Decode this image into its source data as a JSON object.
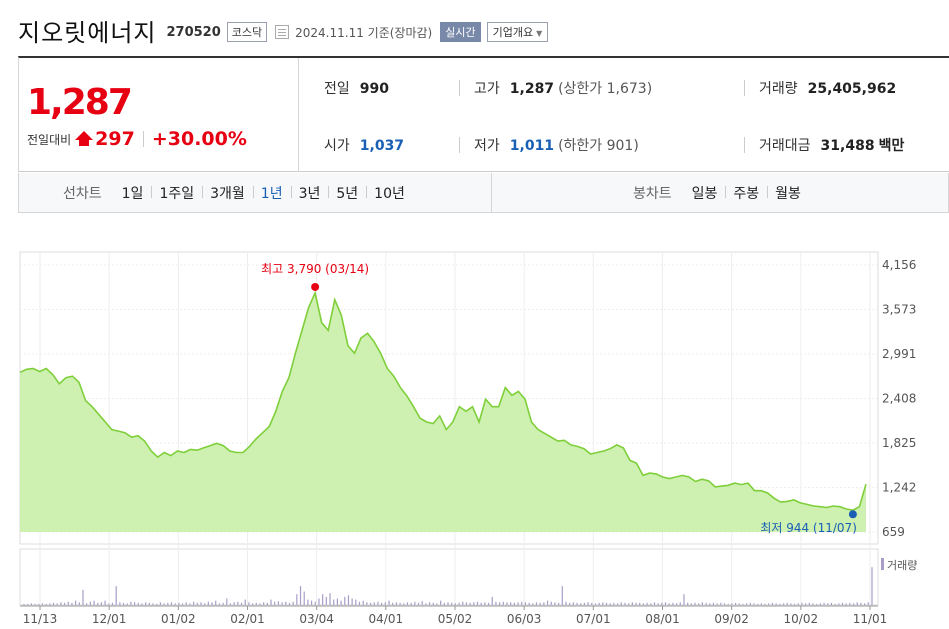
{
  "header": {
    "company_name": "지오릿에너지",
    "stock_code": "270520",
    "market": "코스닥",
    "date_text": "2024.11.11 기준(장마감)",
    "realtime_label": "실시간",
    "overview_label": "기업개요"
  },
  "price": {
    "current": "1,287",
    "change_label": "전일대비",
    "change_value": "297",
    "change_pct": "+30.00%",
    "up_color": "#e60012"
  },
  "stats": {
    "prev_close_label": "전일",
    "prev_close": "990",
    "high_label": "고가",
    "high": "1,287",
    "upper_limit_text": "(상한가 1,673)",
    "volume_label": "거래량",
    "volume": "25,405,962",
    "open_label": "시가",
    "open": "1,037",
    "low_label": "저가",
    "low": "1,011",
    "lower_limit_text": "(하한가 901)",
    "value_label": "거래대금",
    "value": "31,488",
    "value_unit": "백만"
  },
  "periods": {
    "line_label": "선차트",
    "line_options": [
      "1일",
      "1주일",
      "3개월",
      "1년",
      "3년",
      "5년",
      "10년"
    ],
    "active": "1년",
    "candle_label": "봉차트",
    "candle_options": [
      "일봉",
      "주봉",
      "월봉"
    ]
  },
  "chart_data": {
    "type": "area",
    "y_ticks": [
      "4,156",
      "3,573",
      "2,991",
      "2,408",
      "1,825",
      "1,242",
      "659"
    ],
    "ylim": [
      659,
      4156
    ],
    "x_ticks": [
      "11/13",
      "12/01",
      "01/02",
      "02/01",
      "03/04",
      "04/01",
      "05/02",
      "06/03",
      "07/01",
      "08/01",
      "09/02",
      "10/02",
      "11/01"
    ],
    "high_annotation": "최고 3,790 (03/14)",
    "low_annotation": "최저 944 (11/07)",
    "volume_label": "거래량",
    "line_color": "#7ecf3a",
    "fill_color": "#c9f0a8",
    "high_color": "#e60012",
    "low_color": "#1a5fb4",
    "price_series": [
      [
        "11/13",
        2750
      ],
      [
        "11/15",
        2790
      ],
      [
        "11/17",
        2800
      ],
      [
        "11/20",
        2760
      ],
      [
        "11/22",
        2800
      ],
      [
        "11/24",
        2720
      ],
      [
        "11/27",
        2600
      ],
      [
        "11/29",
        2680
      ],
      [
        "12/01",
        2700
      ],
      [
        "12/04",
        2620
      ],
      [
        "12/06",
        2380
      ],
      [
        "12/08",
        2300
      ],
      [
        "12/11",
        2200
      ],
      [
        "12/13",
        2100
      ],
      [
        "12/15",
        2000
      ],
      [
        "12/18",
        1980
      ],
      [
        "12/20",
        1960
      ],
      [
        "12/22",
        1900
      ],
      [
        "12/26",
        1920
      ],
      [
        "12/28",
        1850
      ],
      [
        "01/02",
        1720
      ],
      [
        "01/04",
        1640
      ],
      [
        "01/08",
        1700
      ],
      [
        "01/10",
        1660
      ],
      [
        "01/12",
        1720
      ],
      [
        "01/16",
        1700
      ],
      [
        "01/18",
        1740
      ],
      [
        "01/22",
        1730
      ],
      [
        "01/24",
        1760
      ],
      [
        "01/26",
        1790
      ],
      [
        "01/30",
        1820
      ],
      [
        "02/01",
        1790
      ],
      [
        "02/05",
        1720
      ],
      [
        "02/08",
        1700
      ],
      [
        "02/14",
        1700
      ],
      [
        "02/16",
        1780
      ],
      [
        "02/20",
        1880
      ],
      [
        "02/22",
        1960
      ],
      [
        "02/26",
        2040
      ],
      [
        "02/28",
        2240
      ],
      [
        "03/04",
        2500
      ],
      [
        "03/06",
        2680
      ],
      [
        "03/08",
        3000
      ],
      [
        "03/11",
        3300
      ],
      [
        "03/13",
        3600
      ],
      [
        "03/14",
        3790
      ],
      [
        "03/18",
        3400
      ],
      [
        "03/20",
        3300
      ],
      [
        "03/22",
        3700
      ],
      [
        "03/26",
        3500
      ],
      [
        "03/28",
        3100
      ],
      [
        "04/01",
        3000
      ],
      [
        "04/03",
        3200
      ],
      [
        "04/05",
        3260
      ],
      [
        "04/09",
        3150
      ],
      [
        "04/11",
        3000
      ],
      [
        "04/15",
        2800
      ],
      [
        "04/17",
        2700
      ],
      [
        "04/19",
        2550
      ],
      [
        "04/23",
        2440
      ],
      [
        "04/25",
        2300
      ],
      [
        "04/29",
        2150
      ],
      [
        "05/02",
        2100
      ],
      [
        "05/06",
        2080
      ],
      [
        "05/08",
        2180
      ],
      [
        "05/10",
        2000
      ],
      [
        "05/14",
        2100
      ],
      [
        "05/16",
        2300
      ],
      [
        "05/20",
        2240
      ],
      [
        "05/22",
        2300
      ],
      [
        "05/24",
        2100
      ],
      [
        "05/28",
        2400
      ],
      [
        "05/30",
        2300
      ],
      [
        "06/03",
        2300
      ],
      [
        "06/05",
        2550
      ],
      [
        "06/07",
        2450
      ],
      [
        "06/11",
        2500
      ],
      [
        "06/13",
        2400
      ],
      [
        "06/17",
        2100
      ],
      [
        "06/19",
        2000
      ],
      [
        "06/21",
        1950
      ],
      [
        "06/25",
        1900
      ],
      [
        "06/27",
        1850
      ],
      [
        "07/01",
        1860
      ],
      [
        "07/03",
        1800
      ],
      [
        "07/05",
        1780
      ],
      [
        "07/09",
        1750
      ],
      [
        "07/11",
        1680
      ],
      [
        "07/15",
        1700
      ],
      [
        "07/17",
        1720
      ],
      [
        "07/19",
        1750
      ],
      [
        "07/23",
        1800
      ],
      [
        "07/25",
        1760
      ],
      [
        "07/29",
        1600
      ],
      [
        "08/01",
        1560
      ],
      [
        "08/05",
        1400
      ],
      [
        "08/07",
        1430
      ],
      [
        "08/09",
        1420
      ],
      [
        "08/13",
        1380
      ],
      [
        "08/16",
        1360
      ],
      [
        "08/20",
        1380
      ],
      [
        "08/22",
        1400
      ],
      [
        "08/26",
        1380
      ],
      [
        "08/28",
        1320
      ],
      [
        "08/30",
        1350
      ],
      [
        "09/02",
        1330
      ],
      [
        "09/04",
        1250
      ],
      [
        "09/06",
        1260
      ],
      [
        "09/10",
        1270
      ],
      [
        "09/12",
        1300
      ],
      [
        "09/19",
        1280
      ],
      [
        "09/23",
        1300
      ],
      [
        "09/25",
        1200
      ],
      [
        "09/27",
        1200
      ],
      [
        "10/02",
        1170
      ],
      [
        "10/04",
        1100
      ],
      [
        "10/08",
        1050
      ],
      [
        "10/10",
        1060
      ],
      [
        "10/14",
        1080
      ],
      [
        "10/16",
        1040
      ],
      [
        "10/18",
        1020
      ],
      [
        "10/22",
        1000
      ],
      [
        "10/24",
        990
      ],
      [
        "10/28",
        980
      ],
      [
        "10/30",
        1000
      ],
      [
        "11/01",
        990
      ],
      [
        "11/05",
        960
      ],
      [
        "11/07",
        944
      ],
      [
        "11/08",
        990
      ],
      [
        "11/11",
        1287
      ]
    ],
    "volume_series": [
      0.02,
      0.02,
      0.03,
      0.02,
      0.02,
      0.03,
      0.02,
      0.03,
      0.04,
      0.03,
      0.05,
      0.04,
      0.06,
      0.04,
      0.08,
      0.05,
      0.28,
      0.03,
      0.06,
      0.08,
      0.04,
      0.05,
      0.08,
      0.03,
      0.04,
      0.35,
      0.05,
      0.04,
      0.03,
      0.06,
      0.05,
      0.04,
      0.03,
      0.05,
      0.04,
      0.03,
      0.02,
      0.05,
      0.03,
      0.04,
      0.05,
      0.03,
      0.04,
      0.03,
      0.05,
      0.03,
      0.06,
      0.04,
      0.05,
      0.03,
      0.06,
      0.05,
      0.08,
      0.03,
      0.04,
      0.12,
      0.03,
      0.05,
      0.06,
      0.04,
      0.1,
      0.05,
      0.03,
      0.04,
      0.03,
      0.05,
      0.04,
      0.1,
      0.06,
      0.07,
      0.05,
      0.06,
      0.04,
      0.06,
      0.2,
      0.35,
      0.25,
      0.1,
      0.08,
      0.06,
      0.12,
      0.2,
      0.15,
      0.22,
      0.1,
      0.12,
      0.08,
      0.15,
      0.18,
      0.12,
      0.1,
      0.06,
      0.08,
      0.05,
      0.04,
      0.05,
      0.06,
      0.04,
      0.05,
      0.08,
      0.04,
      0.05,
      0.04,
      0.03,
      0.05,
      0.04,
      0.06,
      0.04,
      0.07,
      0.03,
      0.05,
      0.04,
      0.03,
      0.08,
      0.04,
      0.05,
      0.04,
      0.03,
      0.04,
      0.06,
      0.05,
      0.04,
      0.05,
      0.06,
      0.04,
      0.05,
      0.04,
      0.15,
      0.06,
      0.05,
      0.06,
      0.05,
      0.05,
      0.04,
      0.05,
      0.06,
      0.05,
      0.04,
      0.03,
      0.05,
      0.04,
      0.05,
      0.08,
      0.06,
      0.05,
      0.04,
      0.35,
      0.06,
      0.04,
      0.05,
      0.04,
      0.03,
      0.04,
      0.05,
      0.04,
      0.03,
      0.04,
      0.05,
      0.04,
      0.03,
      0.04,
      0.03,
      0.05,
      0.04,
      0.03,
      0.05,
      0.04,
      0.04,
      0.03,
      0.04,
      0.03,
      0.05,
      0.03,
      0.04,
      0.05,
      0.03,
      0.04,
      0.03,
      0.05,
      0.2,
      0.04,
      0.03,
      0.04,
      0.03,
      0.05,
      0.04,
      0.03,
      0.04,
      0.03,
      0.04,
      0.03,
      0.02,
      0.03,
      0.04,
      0.03,
      0.02,
      0.03,
      0.04,
      0.03,
      0.02,
      0.03,
      0.02,
      0.03,
      0.04,
      0.03,
      0.02,
      0.03,
      0.04,
      0.03,
      0.02,
      0.03,
      0.04,
      0.03,
      0.04,
      0.03,
      0.02,
      0.03,
      0.04,
      0.03,
      0.04,
      0.02,
      0.03,
      0.04,
      0.03,
      0.04,
      0.03,
      0.05,
      0.04,
      0.03,
      0.05,
      0.7
    ]
  }
}
